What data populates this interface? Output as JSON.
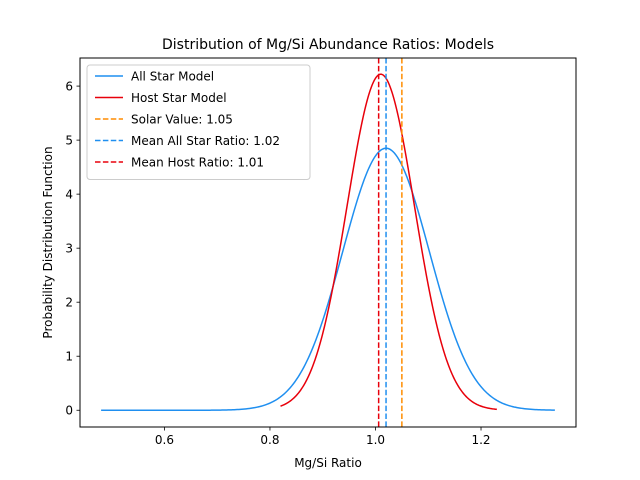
{
  "chart_data": {
    "type": "line",
    "title": "Distribution of Mg/Si Abundance Ratios: Models",
    "xlabel": "Mg/Si Ratio",
    "ylabel": "Probability Distribution Function",
    "xlim": [
      0.44,
      1.38
    ],
    "ylim": [
      -0.31,
      6.52
    ],
    "xticks": [
      0.6,
      0.8,
      1.0,
      1.2
    ],
    "xtick_labels": [
      "0.6",
      "0.8",
      "1.0",
      "1.2"
    ],
    "yticks": [
      0,
      1,
      2,
      3,
      4,
      5,
      6
    ],
    "ytick_labels": [
      "0",
      "1",
      "2",
      "3",
      "4",
      "5",
      "6"
    ],
    "grid": false,
    "legend_position": "top-left",
    "series": [
      {
        "name": "All Star Model",
        "color": "#1f8ff0",
        "style": "solid",
        "kind": "gaussian",
        "mean": 1.02,
        "peak": 4.85,
        "sigma": 0.082,
        "x_range": [
          0.48,
          1.34
        ]
      },
      {
        "name": "Host Star Model",
        "color": "#e8000b",
        "style": "solid",
        "kind": "gaussian",
        "mean": 1.01,
        "peak": 6.22,
        "sigma": 0.064,
        "x_range": [
          0.82,
          1.23
        ]
      }
    ],
    "vlines": [
      {
        "name": "Solar Value: 1.05",
        "x": 1.05,
        "color": "#ff8c00",
        "style": "dashed"
      },
      {
        "name": "Mean All Star Ratio: 1.02",
        "x": 1.02,
        "color": "#1f8ff0",
        "style": "dashed"
      },
      {
        "name": "Mean Host Ratio: 1.01",
        "x": 1.006,
        "color": "#e8000b",
        "style": "dashed"
      }
    ]
  }
}
